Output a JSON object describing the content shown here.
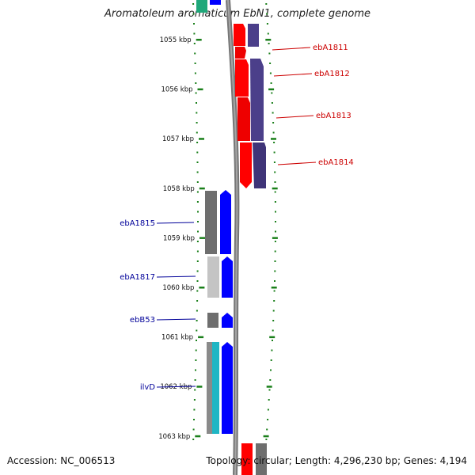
{
  "title": "Aromatoleum aromaticum EbN1, complete genome",
  "accession": "Accession: NC_006513",
  "summary": "Topology: circular; Length: 4,296,230 bp; Genes: 4,194",
  "colors": {
    "red": "#ff0000",
    "purple": "#4b3f8a",
    "blue": "#0000ff",
    "gray": "#6e6e6e",
    "lightgray": "#c4c4c4",
    "cyan": "#1fb6c4",
    "green_tick": "#1a7f1a",
    "backbone": "#808080",
    "label_red": "#cc0000",
    "label_blue": "#000099"
  },
  "map": {
    "kbp_ticks": [
      "1055 kbp",
      "1056 kbp",
      "1057 kbp",
      "1058 kbp",
      "1059 kbp",
      "1060 kbp",
      "1061 kbp",
      "1062 kbp",
      "1063 kbp"
    ],
    "right_genes": [
      "ebA1811",
      "ebA1812",
      "ebA1813",
      "ebA1814"
    ],
    "left_genes": [
      "ebA1815",
      "ebA1817",
      "ebB53",
      "ilvD"
    ]
  }
}
